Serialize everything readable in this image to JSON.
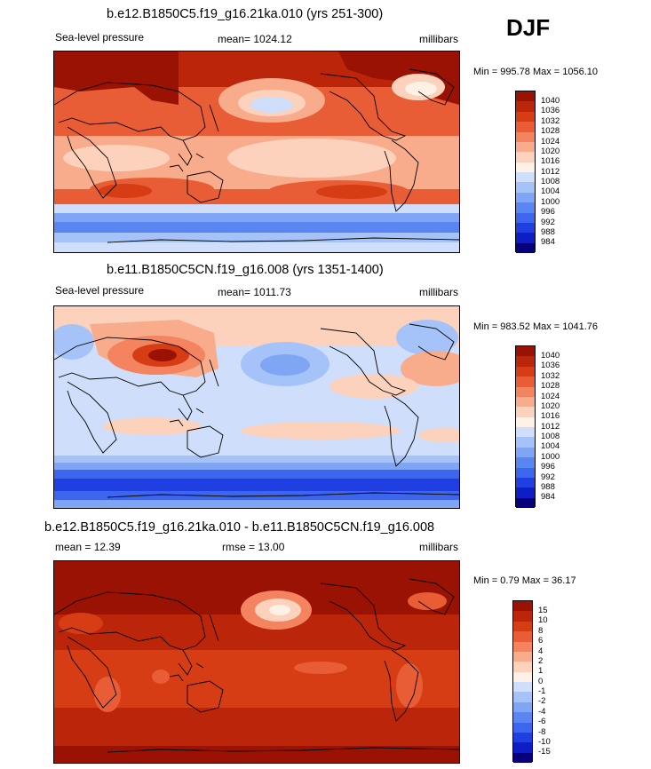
{
  "season": "DJF",
  "colors": {
    "slp_scale": [
      "#08007a",
      "#0d1ec7",
      "#1f3fe0",
      "#3c66ee",
      "#5a86f2",
      "#7ea6f5",
      "#a5c3f8",
      "#cfdffb",
      "#fff1e6",
      "#fcd2bd",
      "#f8ac8c",
      "#f3845f",
      "#e85d36",
      "#d63d15",
      "#bb260b",
      "#9a1204"
    ],
    "diff_scale": [
      "#08007a",
      "#0d1ec7",
      "#1f3fe0",
      "#3c66ee",
      "#5a86f2",
      "#7ea6f5",
      "#a5c3f8",
      "#cfdffb",
      "#fff1e6",
      "#fcd2bd",
      "#f8ac8c",
      "#f3845f",
      "#e85d36",
      "#d63d15",
      "#bb260b",
      "#9a1204"
    ]
  },
  "panels": [
    {
      "title": "b.e12.B1850C5.f19_g16.21ka.010 (yrs 251-300)",
      "left_label": "Sea-level pressure",
      "center_label": "mean= 1024.12",
      "right_label": "millibars",
      "minmax": "Min = 995.78 Max = 1056.10",
      "labels": [
        "1040",
        "1036",
        "1032",
        "1028",
        "1024",
        "1020",
        "1016",
        "1012",
        "1008",
        "1004",
        "1000",
        "996",
        "992",
        "988",
        "984"
      ]
    },
    {
      "title": "b.e11.B1850C5CN.f19_g16.008 (yrs 1351-1400)",
      "left_label": "Sea-level pressure",
      "center_label": "mean= 1011.73",
      "right_label": "millibars",
      "minmax": "Min = 983.52 Max = 1041.76",
      "labels": [
        "1040",
        "1036",
        "1032",
        "1028",
        "1024",
        "1020",
        "1016",
        "1012",
        "1008",
        "1004",
        "1000",
        "996",
        "992",
        "988",
        "984"
      ]
    },
    {
      "title": "b.e12.B1850C5.f19_g16.21ka.010 - b.e11.B1850C5CN.f19_g16.008",
      "left_label": "mean =  12.39",
      "center_label": "rmse =  13.00",
      "right_label": "millibars",
      "minmax": "Min =   0.79 Max =  36.17",
      "labels": [
        "15",
        "10",
        "8",
        "6",
        "4",
        "2",
        "1",
        "0",
        "-1",
        "-2",
        "-4",
        "-6",
        "-8",
        "-10",
        "-15"
      ]
    }
  ]
}
